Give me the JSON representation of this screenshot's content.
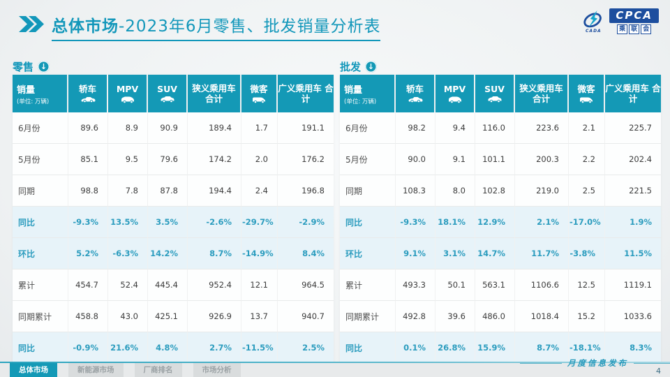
{
  "header": {
    "title_bold": "总体市场",
    "title_rest": "-2023年6月零售、批发销量分析表",
    "logo": {
      "en": "CPCA",
      "cn": "乘联会",
      "sub": "CADA"
    }
  },
  "watermark": "CPCA",
  "tables": [
    {
      "section": "零售",
      "unit_label": "销量",
      "unit_sub": "(单位: 万辆)",
      "columns": [
        {
          "label": "轿车",
          "icon": "sedan-icon"
        },
        {
          "label": "MPV",
          "icon": "mpv-icon"
        },
        {
          "label": "SUV",
          "icon": "suv-icon"
        },
        {
          "label": "狭义乘用车 合计",
          "icon": null
        },
        {
          "label": "微客",
          "icon": "microvan-icon"
        },
        {
          "label": "广义乘用车 合计",
          "icon": null
        }
      ],
      "rows": [
        {
          "label": "6月份",
          "highlight": false,
          "values": [
            "89.6",
            "8.9",
            "90.9",
            "189.4",
            "1.7",
            "191.1"
          ]
        },
        {
          "label": "5月份",
          "highlight": false,
          "values": [
            "85.1",
            "9.5",
            "79.6",
            "174.2",
            "2.0",
            "176.2"
          ]
        },
        {
          "label": "同期",
          "highlight": false,
          "values": [
            "98.8",
            "7.8",
            "87.8",
            "194.4",
            "2.4",
            "196.8"
          ]
        },
        {
          "label": "同比",
          "highlight": true,
          "values": [
            "-9.3%",
            "13.5%",
            "3.5%",
            "-2.6%",
            "-29.7%",
            "-2.9%"
          ]
        },
        {
          "label": "环比",
          "highlight": true,
          "values": [
            "5.2%",
            "-6.3%",
            "14.2%",
            "8.7%",
            "-14.9%",
            "8.4%"
          ]
        },
        {
          "label": "累计",
          "highlight": false,
          "values": [
            "454.7",
            "52.4",
            "445.4",
            "952.4",
            "12.1",
            "964.5"
          ]
        },
        {
          "label": "同期累计",
          "highlight": false,
          "values": [
            "458.8",
            "43.0",
            "425.1",
            "926.9",
            "13.7",
            "940.7"
          ]
        },
        {
          "label": "同比",
          "highlight": true,
          "values": [
            "-0.9%",
            "21.6%",
            "4.8%",
            "2.7%",
            "-11.5%",
            "2.5%"
          ]
        }
      ]
    },
    {
      "section": "批发",
      "unit_label": "销量",
      "unit_sub": "(单位: 万辆)",
      "columns": [
        {
          "label": "轿车",
          "icon": "sedan-icon"
        },
        {
          "label": "MPV",
          "icon": "mpv-icon"
        },
        {
          "label": "SUV",
          "icon": "suv-icon"
        },
        {
          "label": "狭义乘用车 合计",
          "icon": null
        },
        {
          "label": "微客",
          "icon": "microvan-icon"
        },
        {
          "label": "广义乘用车 合计",
          "icon": null
        }
      ],
      "rows": [
        {
          "label": "6月份",
          "highlight": false,
          "values": [
            "98.2",
            "9.4",
            "116.0",
            "223.6",
            "2.1",
            "225.7"
          ]
        },
        {
          "label": "5月份",
          "highlight": false,
          "values": [
            "90.0",
            "9.1",
            "101.1",
            "200.3",
            "2.2",
            "202.4"
          ]
        },
        {
          "label": "同期",
          "highlight": false,
          "values": [
            "108.3",
            "8.0",
            "102.8",
            "219.0",
            "2.5",
            "221.5"
          ]
        },
        {
          "label": "同比",
          "highlight": true,
          "values": [
            "-9.3%",
            "18.1%",
            "12.9%",
            "2.1%",
            "-17.0%",
            "1.9%"
          ]
        },
        {
          "label": "环比",
          "highlight": true,
          "values": [
            "9.1%",
            "3.1%",
            "14.7%",
            "11.7%",
            "-3.8%",
            "11.5%"
          ]
        },
        {
          "label": "累计",
          "highlight": false,
          "values": [
            "493.3",
            "50.1",
            "563.1",
            "1106.6",
            "12.5",
            "1119.1"
          ]
        },
        {
          "label": "同期累计",
          "highlight": false,
          "values": [
            "492.8",
            "39.6",
            "486.0",
            "1018.4",
            "15.2",
            "1033.6"
          ]
        },
        {
          "label": "同比",
          "highlight": true,
          "values": [
            "0.1%",
            "26.8%",
            "15.9%",
            "8.7%",
            "-18.1%",
            "8.3%"
          ]
        }
      ]
    }
  ],
  "footer": {
    "tabs": [
      {
        "label": "总体市场",
        "active": true
      },
      {
        "label": "新能源市场",
        "active": false
      },
      {
        "label": "厂商排名",
        "active": false
      },
      {
        "label": "市场分析",
        "active": false
      }
    ],
    "note": "月度信息发布",
    "page": "4"
  },
  "colors": {
    "teal": "#1499b6",
    "title_teal": "#1297ba",
    "highlight_row_bg": "#e7f3f9",
    "highlight_text": "#2b9cbe",
    "logo_blue": "#1d4e9e"
  }
}
